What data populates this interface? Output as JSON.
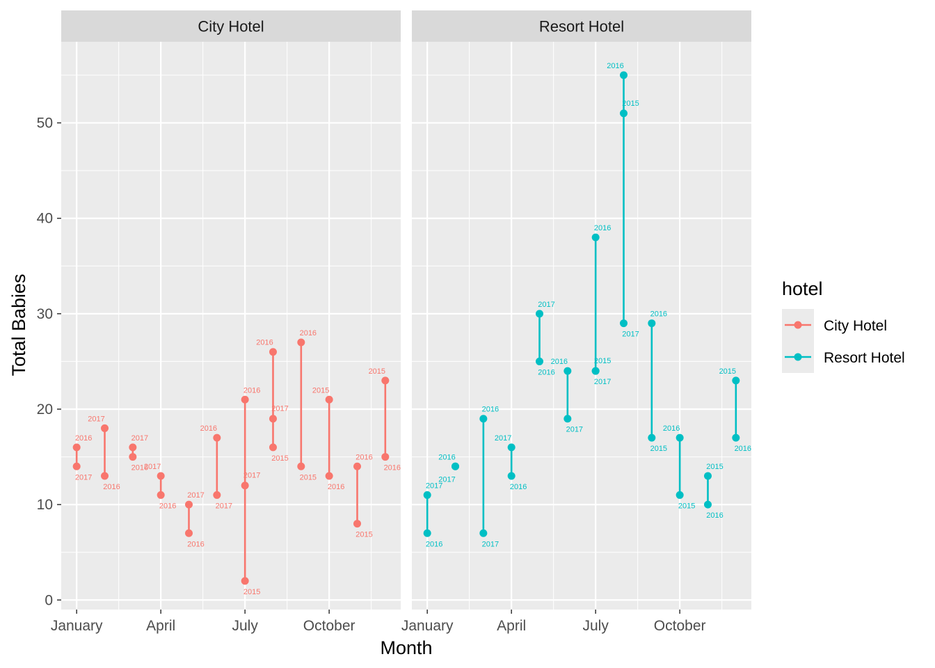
{
  "chart_data": {
    "type": "line",
    "xlabel": "Month",
    "ylabel": "Total Babies",
    "ylim": [
      -1,
      58.5
    ],
    "y_ticks": [
      0,
      10,
      20,
      30,
      40,
      50
    ],
    "x_ticks": [
      {
        "month": 1,
        "label": "January"
      },
      {
        "month": 4,
        "label": "April"
      },
      {
        "month": 7,
        "label": "July"
      },
      {
        "month": 10,
        "label": "October"
      }
    ],
    "grid": true,
    "legend": {
      "title": "hotel",
      "placement": "right",
      "entries": [
        {
          "name": "City Hotel",
          "color": "#F8766D"
        },
        {
          "name": "Resort Hotel",
          "color": "#00BFC4"
        }
      ]
    },
    "panels": [
      {
        "name": "City Hotel",
        "color": "#F8766D",
        "points": [
          {
            "month": 1,
            "value": 16,
            "year": "2016"
          },
          {
            "month": 1,
            "value": 14,
            "year": "2017"
          },
          {
            "month": 2,
            "value": 18,
            "year": "2017"
          },
          {
            "month": 2,
            "value": 13,
            "year": "2016"
          },
          {
            "month": 3,
            "value": 16,
            "year": "2017"
          },
          {
            "month": 3,
            "value": 15,
            "year": "2016"
          },
          {
            "month": 4,
            "value": 13,
            "year": "2017"
          },
          {
            "month": 4,
            "value": 11,
            "year": "2016"
          },
          {
            "month": 5,
            "value": 10,
            "year": "2017"
          },
          {
            "month": 5,
            "value": 7,
            "year": "2016"
          },
          {
            "month": 6,
            "value": 17,
            "year": "2016"
          },
          {
            "month": 6,
            "value": 11,
            "year": "2017"
          },
          {
            "month": 7,
            "value": 21,
            "year": "2016"
          },
          {
            "month": 7,
            "value": 12,
            "year": "2017"
          },
          {
            "month": 7,
            "value": 2,
            "year": "2015"
          },
          {
            "month": 8,
            "value": 26,
            "year": "2016"
          },
          {
            "month": 8,
            "value": 19,
            "year": "2017"
          },
          {
            "month": 8,
            "value": 16,
            "year": "2015"
          },
          {
            "month": 9,
            "value": 27,
            "year": "2016"
          },
          {
            "month": 9,
            "value": 14,
            "year": "2015"
          },
          {
            "month": 10,
            "value": 21,
            "year": "2015"
          },
          {
            "month": 10,
            "value": 13,
            "year": "2016"
          },
          {
            "month": 11,
            "value": 14,
            "year": "2016"
          },
          {
            "month": 11,
            "value": 8,
            "year": "2015"
          },
          {
            "month": 12,
            "value": 23,
            "year": "2015"
          },
          {
            "month": 12,
            "value": 15,
            "year": "2016"
          }
        ]
      },
      {
        "name": "Resort Hotel",
        "color": "#00BFC4",
        "points": [
          {
            "month": 1,
            "value": 11,
            "year": "2017"
          },
          {
            "month": 1,
            "value": 7,
            "year": "2016"
          },
          {
            "month": 2,
            "value": 14,
            "year": "2016"
          },
          {
            "month": 2,
            "value": 14,
            "year": "2017"
          },
          {
            "month": 3,
            "value": 19,
            "year": "2016"
          },
          {
            "month": 3,
            "value": 7,
            "year": "2017"
          },
          {
            "month": 4,
            "value": 16,
            "year": "2017"
          },
          {
            "month": 4,
            "value": 13,
            "year": "2016"
          },
          {
            "month": 5,
            "value": 30,
            "year": "2017"
          },
          {
            "month": 5,
            "value": 25,
            "year": "2016"
          },
          {
            "month": 6,
            "value": 24,
            "year": "2016"
          },
          {
            "month": 6,
            "value": 19,
            "year": "2017"
          },
          {
            "month": 7,
            "value": 38,
            "year": "2016"
          },
          {
            "month": 7,
            "value": 24,
            "year": "2015"
          },
          {
            "month": 7,
            "value": 24,
            "year": "2017"
          },
          {
            "month": 8,
            "value": 55,
            "year": "2016"
          },
          {
            "month": 8,
            "value": 51,
            "year": "2015"
          },
          {
            "month": 8,
            "value": 29,
            "year": "2017"
          },
          {
            "month": 9,
            "value": 29,
            "year": "2016"
          },
          {
            "month": 9,
            "value": 17,
            "year": "2015"
          },
          {
            "month": 10,
            "value": 17,
            "year": "2016"
          },
          {
            "month": 10,
            "value": 11,
            "year": "2015"
          },
          {
            "month": 11,
            "value": 13,
            "year": "2015"
          },
          {
            "month": 11,
            "value": 10,
            "year": "2016"
          },
          {
            "month": 12,
            "value": 23,
            "year": "2015"
          },
          {
            "month": 12,
            "value": 17,
            "year": "2016"
          }
        ]
      }
    ]
  }
}
